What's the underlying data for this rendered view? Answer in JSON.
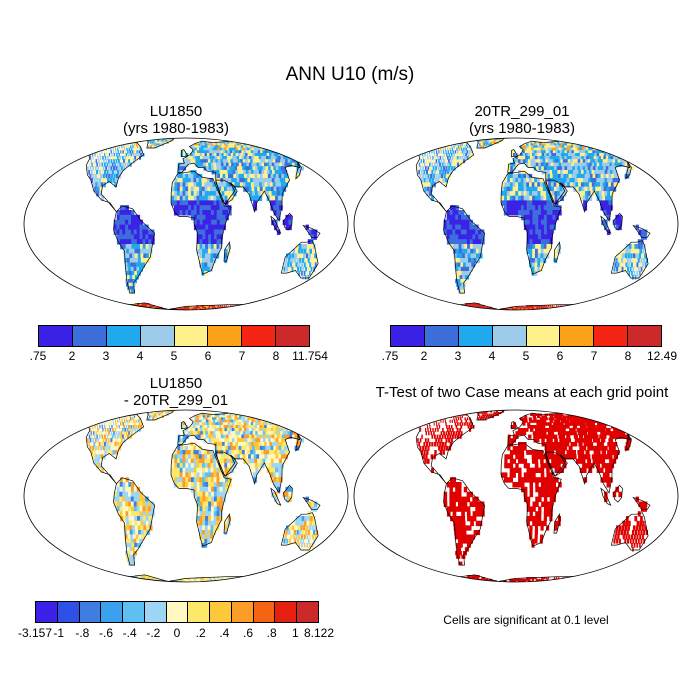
{
  "figure": {
    "title": "ANN U10 (m/s)"
  },
  "panels": {
    "top_left": {
      "title_line1": "LU1850",
      "title_line2": "(yrs 1980-1983)",
      "colorbar_labels": [
        ".75",
        "2",
        "3",
        "4",
        "5",
        "6",
        "7",
        "8",
        "11.754"
      ],
      "colorbar_colors": [
        "#3b22e6",
        "#3d6fdb",
        "#20a9ee",
        "#9dcbea",
        "#fef18d",
        "#fba21a",
        "#f42513",
        "#cc2a2a"
      ]
    },
    "top_right": {
      "title_line1": "20TR_299_01",
      "title_line2": "(yrs 1980-1983)",
      "colorbar_labels": [
        ".75",
        "2",
        "3",
        "4",
        "5",
        "6",
        "7",
        "8",
        "12.49"
      ],
      "colorbar_colors": [
        "#3b22e6",
        "#3d6fdb",
        "#20a9ee",
        "#9dcbea",
        "#fef18d",
        "#fba21a",
        "#f42513",
        "#cc2a2a"
      ]
    },
    "bottom_left": {
      "title_line1": "LU1850",
      "title_line2": "- 20TR_299_01",
      "colorbar_labels": [
        "-3.157",
        "-1",
        "-.8",
        "-.6",
        "-.4",
        "-.2",
        "0",
        ".2",
        ".4",
        ".6",
        ".8",
        "1",
        "8.122"
      ],
      "colorbar_colors": [
        "#3b22e6",
        "#2e50e6",
        "#3d7ee0",
        "#3ba0ee",
        "#5ec0f2",
        "#9dd6f4",
        "#fff8c2",
        "#fde86a",
        "#fdc93a",
        "#fb9d28",
        "#f56412",
        "#e62010",
        "#cc2a2a"
      ]
    },
    "bottom_right": {
      "title": "T-Test of two Case means at each grid point",
      "note": "Cells are significant at 0.1 level",
      "significance_color": "#e00000"
    }
  }
}
